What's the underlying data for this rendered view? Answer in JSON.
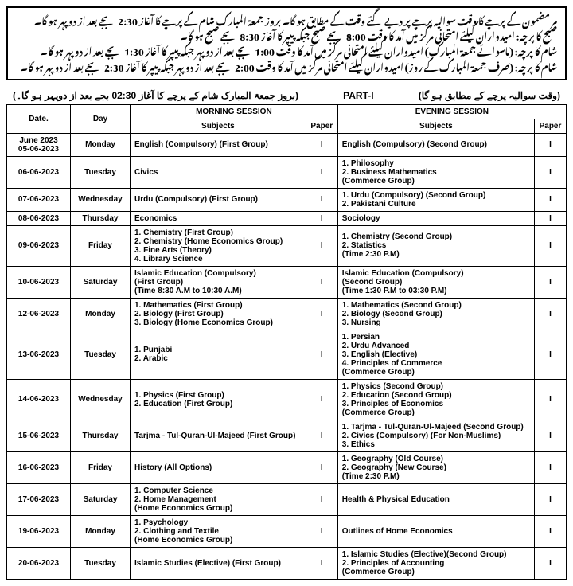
{
  "notice": {
    "lines": [
      "ہر مضمون کے پرچے کا وقت سوالیہ پرچے پر دیے گئے وقت کے مطابق ہو گا۔ بروز جمعۃ المبارک شام کے پرچے کا آغاز 2:30 بجے بعد از دوپہر ہو گا۔",
      "صبح کا پرچہ: امیدواران کیلئے امتحانی مرکز میں آمد کا وقت 8:00 بجے صبح جبکہ پیپر کا آغاز 8:30 بجے صبح ہو گا۔",
      "شام کا پرچہ: (ماسوائے جمعۃ المبارک) امیدواران کیلئے امتحانی مرکز میں آمد کا وقت 1:00 بجے بعد از دوپہر جبکہ پیپر کا آغاز 1:30 بجے بعد از دوپہر ہو گا۔",
      "شام کا پرچہ: (صرف جمعۃ المبارک کے روز) امیدواران کیلئے امتحانی مرکز میں آمد کا وقت 2:00 بجے بعد از دوپہر جبکہ پیپر کا آغاز 2:30 بجے بعد از دوپہر ہو گا۔"
    ]
  },
  "part_header": {
    "left": "(بروز جمعۃ المبارک شام کے پرچے کا آغاز 02:30 بجے بعد از دوپہر ہو گا۔)",
    "center": "PART-I",
    "right": "(وقت سوالیہ پرچے کے مطابق ہو گا)"
  },
  "headers": {
    "date": "Date.",
    "day": "Day",
    "morning": "MORNING SESSION",
    "evening": "EVENING SESSION",
    "subjects": "Subjects",
    "paper": "Paper"
  },
  "june_label": "June 2023",
  "rows": [
    {
      "date": "05-06-2023",
      "day": "Monday",
      "m": "English (Compulsory) (First Group)",
      "mp": "I",
      "e": "English (Compulsory) (Second Group)",
      "ep": "I"
    },
    {
      "date": "06-06-2023",
      "day": "Tuesday",
      "m": "Civics",
      "mp": "I",
      "e": "1. Philosophy\n2. Business Mathematics\n   (Commerce Group)",
      "ep": "I"
    },
    {
      "date": "07-06-2023",
      "day": "Wednesday",
      "m": "Urdu (Compulsory) (First Group)",
      "mp": "I",
      "e": "1. Urdu (Compulsory) (Second Group)\n2. Pakistani Culture",
      "ep": "I"
    },
    {
      "date": "08-06-2023",
      "day": "Thursday",
      "m": "Economics",
      "mp": "I",
      "e": "Sociology",
      "ep": "I"
    },
    {
      "date": "09-06-2023",
      "day": "Friday",
      "m": "1. Chemistry  (First Group)\n2. Chemistry  (Home Economics Group)\n3. Fine Arts (Theory)\n4. Library Science",
      "mp": "I",
      "e": "1. Chemistry  (Second Group)\n2. Statistics\n   (Time 2:30 P.M)",
      "ep": "I"
    },
    {
      "date": "10-06-2023",
      "day": "Saturday",
      "m": "Islamic Education (Compulsory)\n(First Group)\n(Time 8:30 A.M  to 10:30 A.M)",
      "mp": "I",
      "e": "Islamic Education (Compulsory)\n(Second Group)\n(Time 1:30 P.M to 03:30 P.M)",
      "ep": "I"
    },
    {
      "date": "12-06-2023",
      "day": "Monday",
      "m": "1. Mathematics (First Group)\n2. Biology  (First Group)\n3. Biology (Home Economics Group)",
      "mp": "I",
      "e": "1. Mathematics (Second Group)\n2. Biology  (Second Group)\n3. Nursing",
      "ep": "I"
    },
    {
      "date": "13-06-2023",
      "day": "Tuesday",
      "m": "1. Punjabi\n2. Arabic",
      "mp": "I",
      "e": "1. Persian\n2. Urdu Advanced\n3. English (Elective)\n4. Principles of Commerce\n   (Commerce Group)",
      "ep": "I"
    },
    {
      "date": "14-06-2023",
      "day": "Wednesday",
      "m": "1. Physics (First Group)\n2. Education (First Group)",
      "mp": "I",
      "e": "1. Physics (Second Group)\n2. Education (Second Group)\n3. Principles of Economics\n   (Commerce Group)",
      "ep": "I"
    },
    {
      "date": "15-06-2023",
      "day": "Thursday",
      "m": "Tarjma - Tul-Quran-Ul-Majeed (First Group)",
      "mp": "I",
      "e": "1. Tarjma - Tul-Quran-Ul-Majeed (Second Group)\n2. Civics (Compulsory) (For Non-Muslims)\n3. Ethics",
      "ep": "I"
    },
    {
      "date": "16-06-2023",
      "day": "Friday",
      "m": "History (All Options)",
      "mp": "I",
      "e": "1. Geography (Old Course)\n2. Geography (New Course)\n   (Time 2:30 P.M)",
      "ep": "I"
    },
    {
      "date": "17-06-2023",
      "day": "Saturday",
      "m": "1. Computer Science\n2. Home Management\n   (Home Economics Group)",
      "mp": "I",
      "e": "Health & Physical Education",
      "ep": "I"
    },
    {
      "date": "19-06-2023",
      "day": "Monday",
      "m": "1. Psychology\n2. Clothing and Textile\n   (Home Economics Group)",
      "mp": "I",
      "e": "Outlines of Home Economics",
      "ep": "I"
    },
    {
      "date": "20-06-2023",
      "day": "Tuesday",
      "m": "Islamic Studies (Elective)  (First Group)",
      "mp": "I",
      "e": "1. Islamic Studies (Elective)(Second Group)\n2. Principles of Accounting\n   (Commerce Group)",
      "ep": "I"
    }
  ]
}
